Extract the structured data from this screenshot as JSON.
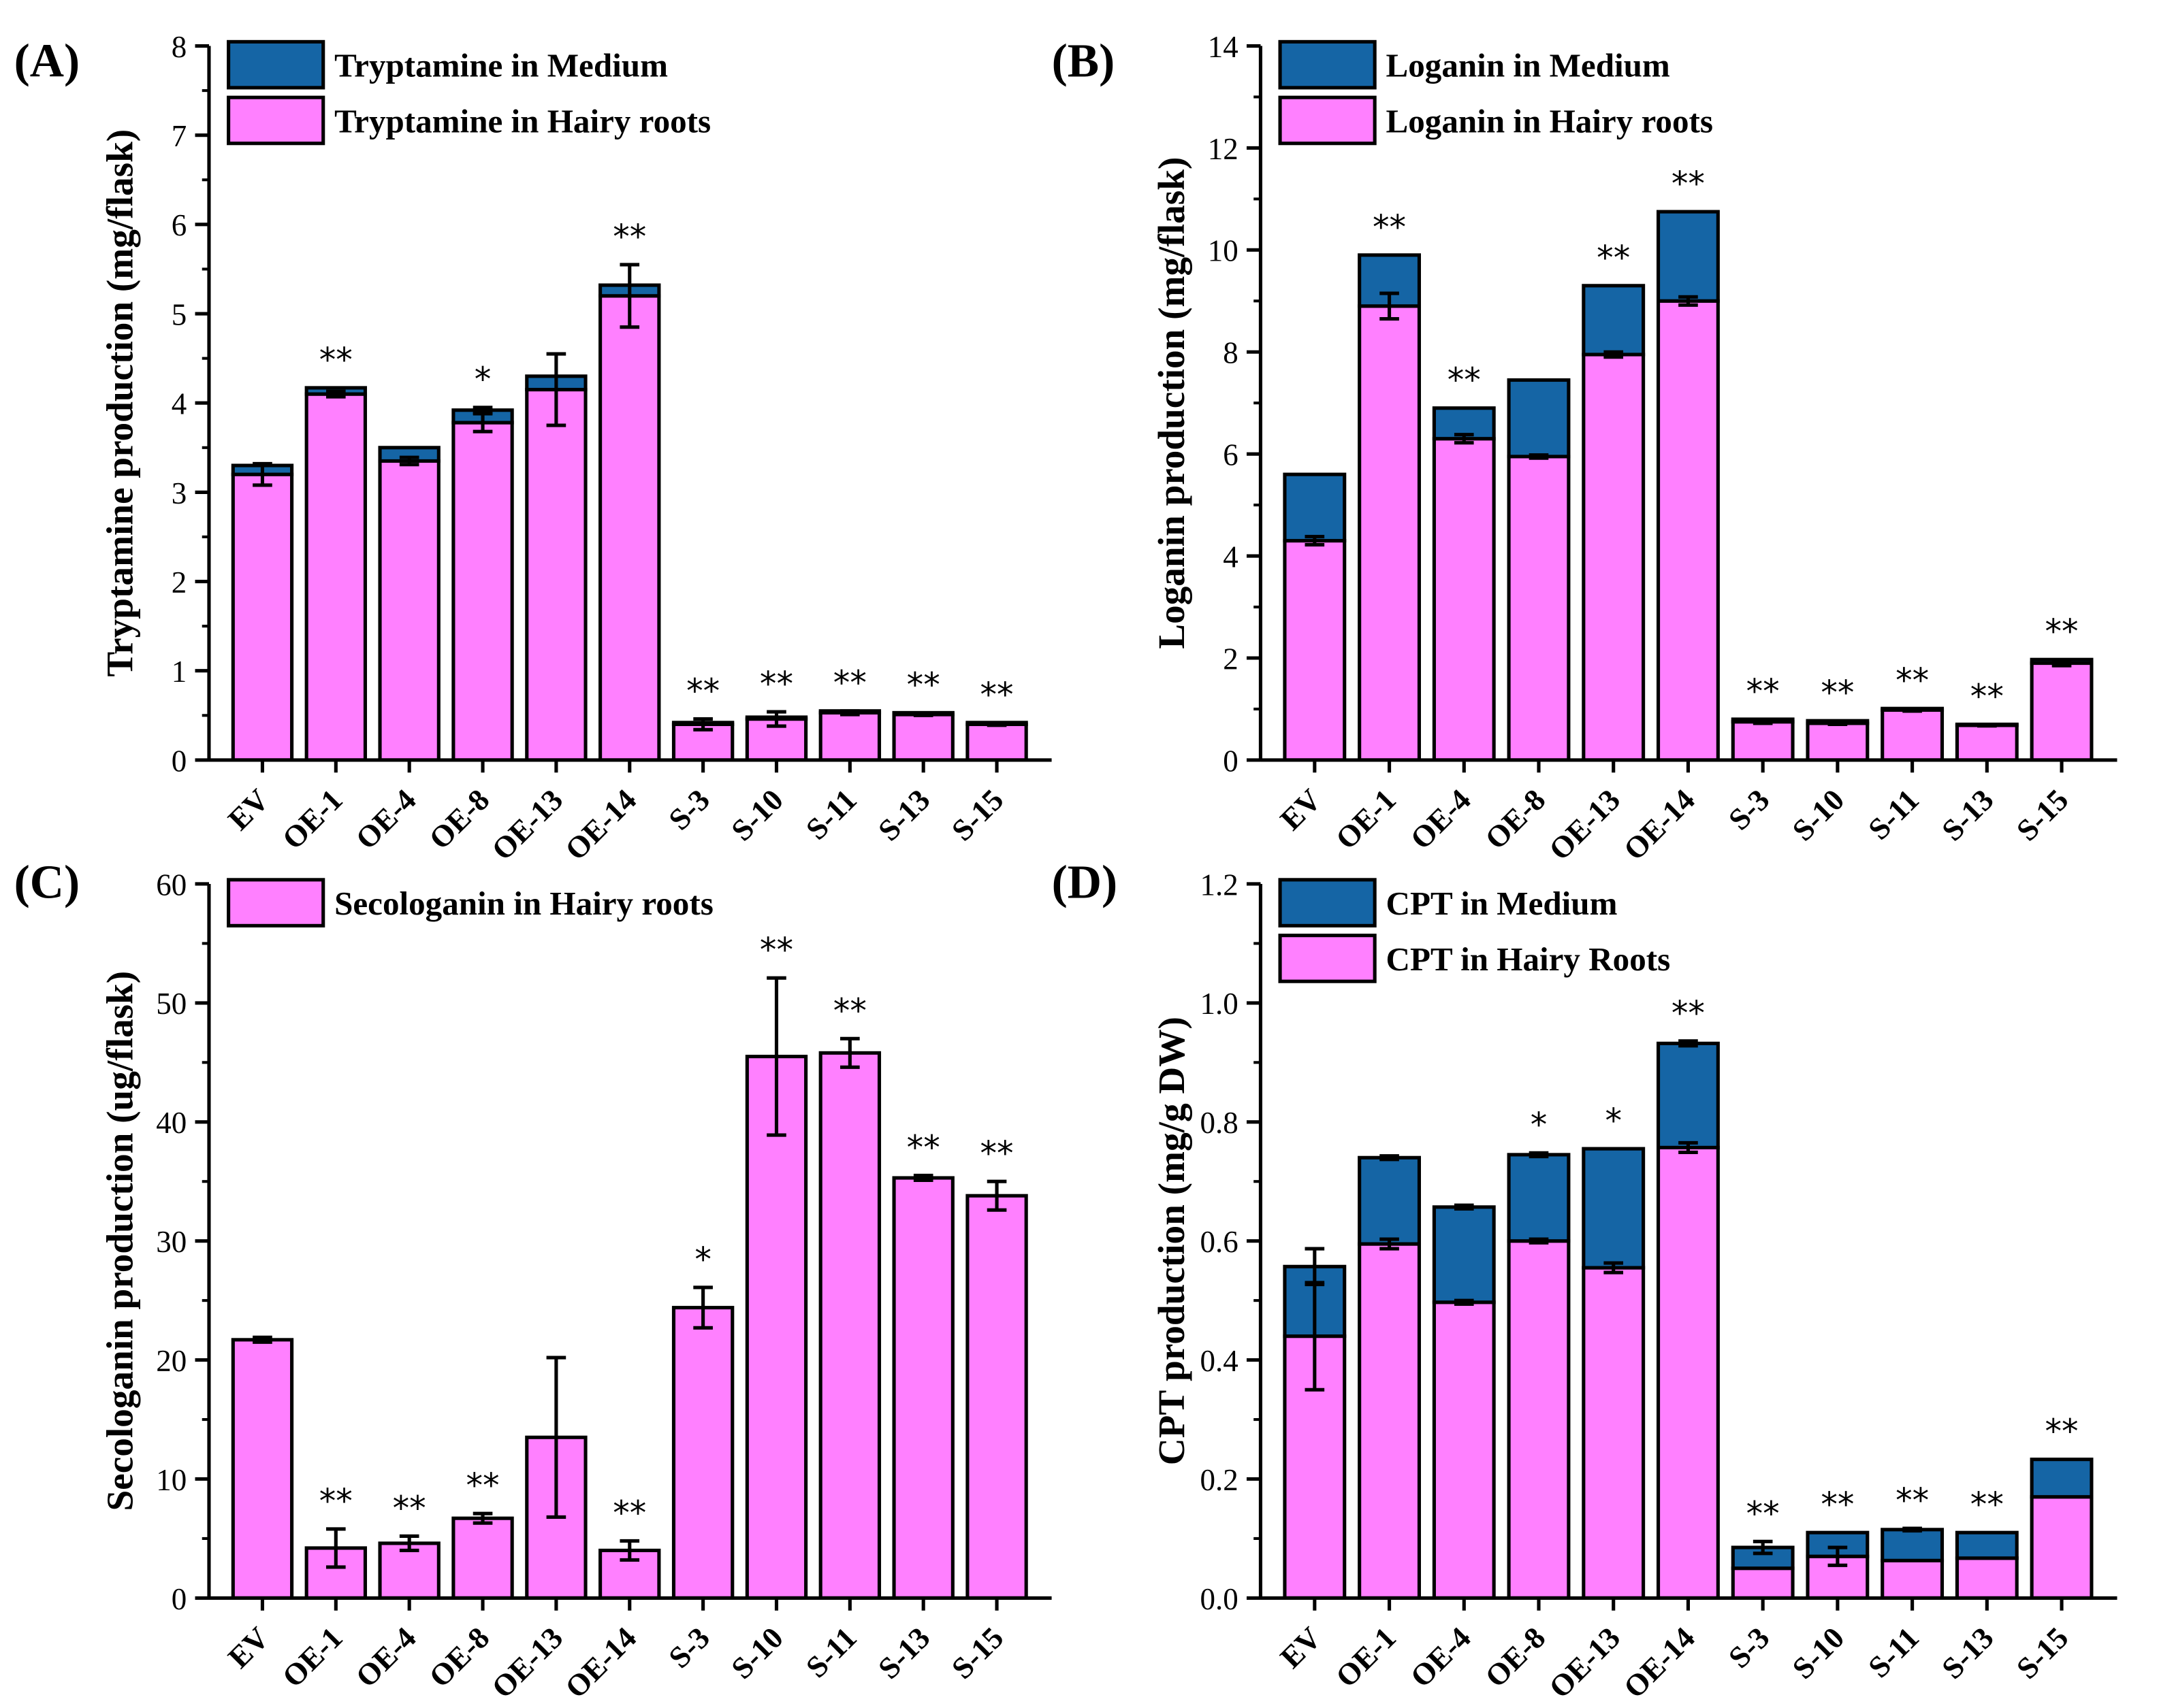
{
  "colors": {
    "hairy": "#ff80ff",
    "medium": "#1565a5",
    "outline": "#000000"
  },
  "chart_data": [
    {
      "panel": "(A)",
      "type": "bar",
      "stacked": true,
      "ylabel": "Tryptamine production (mg/flask)",
      "ylim": [
        0,
        8
      ],
      "yticks": [
        0,
        1,
        2,
        3,
        4,
        5,
        6,
        7,
        8
      ],
      "minor": 0.5,
      "categories": [
        "EV",
        "OE-1",
        "OE-4",
        "OE-8",
        "OE-13",
        "OE-14",
        "S-3",
        "S-10",
        "S-11",
        "S-13",
        "S-15"
      ],
      "series": [
        {
          "name": "Tryptamine in Hairy roots",
          "color": "hairy",
          "values": [
            3.2,
            4.1,
            3.35,
            3.78,
            4.15,
            5.2,
            0.4,
            0.46,
            0.53,
            0.51,
            0.4
          ],
          "err": [
            0.12,
            0.03,
            0.04,
            0.1,
            0.4,
            0.35,
            0.06,
            0.08,
            0.02,
            0.01,
            0.01
          ]
        },
        {
          "name": "Tryptamine in Medium",
          "color": "medium",
          "values": [
            0.1,
            0.07,
            0.15,
            0.14,
            0.15,
            0.12,
            0.02,
            0.02,
            0.02,
            0.02,
            0.02
          ],
          "err": [
            0,
            0,
            0,
            0.03,
            0,
            0,
            0,
            0,
            0,
            0,
            0
          ]
        }
      ],
      "legend": [
        "Tryptamine in Medium",
        "Tryptamine in Hairy roots"
      ],
      "stars": [
        "",
        "**",
        "",
        "*",
        "",
        "**",
        "**",
        "**",
        "**",
        "**",
        "**"
      ]
    },
    {
      "panel": "(B)",
      "type": "bar",
      "stacked": true,
      "ylabel": "Loganin production (mg/flask)",
      "ylim": [
        0,
        14
      ],
      "yticks": [
        0,
        2,
        4,
        6,
        8,
        10,
        12,
        14
      ],
      "minor": 1,
      "categories": [
        "EV",
        "OE-1",
        "OE-4",
        "OE-8",
        "OE-13",
        "OE-14",
        "S-3",
        "S-10",
        "S-11",
        "S-13",
        "S-15"
      ],
      "series": [
        {
          "name": "Loganin in Hairy roots",
          "color": "hairy",
          "values": [
            4.3,
            8.9,
            6.3,
            5.95,
            7.95,
            9.0,
            0.75,
            0.72,
            0.98,
            0.68,
            1.9
          ],
          "err": [
            0.08,
            0.25,
            0.08,
            0.03,
            0.05,
            0.08,
            0.03,
            0.02,
            0.02,
            0.01,
            0.05
          ]
        },
        {
          "name": "Loganin in Medium",
          "color": "medium",
          "values": [
            1.3,
            1.0,
            0.6,
            1.5,
            1.35,
            1.75,
            0.05,
            0.05,
            0.03,
            0.02,
            0.07
          ],
          "err": [
            0,
            0,
            0,
            0,
            0,
            0,
            0,
            0,
            0,
            0,
            0
          ]
        }
      ],
      "legend": [
        "Loganin in Medium",
        "Loganin in Hairy roots"
      ],
      "stars": [
        "",
        "**",
        "**",
        "",
        "**",
        "**",
        "**",
        "**",
        "**",
        "**",
        "**"
      ]
    },
    {
      "panel": "(C)",
      "type": "bar",
      "stacked": false,
      "ylabel": "Secologanin production (ug/flask)",
      "ylim": [
        0,
        60
      ],
      "yticks": [
        0,
        10,
        20,
        30,
        40,
        50,
        60
      ],
      "minor": 5,
      "categories": [
        "EV",
        "OE-1",
        "OE-4",
        "OE-8",
        "OE-13",
        "OE-14",
        "S-3",
        "S-10",
        "S-11",
        "S-13",
        "S-15"
      ],
      "series": [
        {
          "name": "Secologanin in Hairy roots",
          "color": "hairy",
          "values": [
            21.7,
            4.2,
            4.6,
            6.7,
            13.5,
            4.0,
            24.4,
            45.5,
            45.8,
            35.3,
            33.8
          ],
          "err": [
            0.2,
            1.6,
            0.6,
            0.4,
            6.7,
            0.8,
            1.7,
            6.6,
            1.2,
            0.2,
            1.2
          ]
        }
      ],
      "legend": [
        "Secologanin in Hairy roots"
      ],
      "stars": [
        "",
        "**",
        "**",
        "**",
        "",
        "**",
        "*",
        "**",
        "**",
        "**",
        "**"
      ]
    },
    {
      "panel": "(D)",
      "type": "bar",
      "stacked": true,
      "ylabel": "CPT production (mg/g DW)",
      "ylim": [
        0,
        1.2
      ],
      "yticks": [
        0.0,
        0.2,
        0.4,
        0.6,
        0.8,
        1.0,
        1.2
      ],
      "tickfmt": 1,
      "minor": 0.1,
      "categories": [
        "EV",
        "OE-1",
        "OE-4",
        "OE-8",
        "OE-13",
        "OE-14",
        "S-3",
        "S-10",
        "S-11",
        "S-13",
        "S-15"
      ],
      "series": [
        {
          "name": "CPT in Hairy Roots",
          "color": "hairy",
          "values": [
            0.44,
            0.595,
            0.497,
            0.6,
            0.555,
            0.757,
            0.05,
            0.07,
            0.063,
            0.067,
            0.17
          ],
          "err": [
            0.09,
            0.008,
            0.003,
            0.003,
            0.008,
            0.008,
            0,
            0.015,
            0,
            0,
            0
          ]
        },
        {
          "name": "CPT in Medium",
          "color": "medium",
          "values": [
            0.117,
            0.145,
            0.16,
            0.145,
            0.2,
            0.175,
            0.035,
            0.04,
            0.052,
            0.043,
            0.063
          ],
          "err": [
            0.03,
            0.003,
            0.003,
            0.003,
            0,
            0.004,
            0.01,
            0,
            0.002,
            0,
            0
          ]
        }
      ],
      "legend": [
        "CPT in Medium",
        "CPT in Hairy Roots"
      ],
      "stars": [
        "",
        "",
        "",
        "*",
        "*",
        "**",
        "**",
        "**",
        "**",
        "**",
        "**"
      ]
    }
  ]
}
